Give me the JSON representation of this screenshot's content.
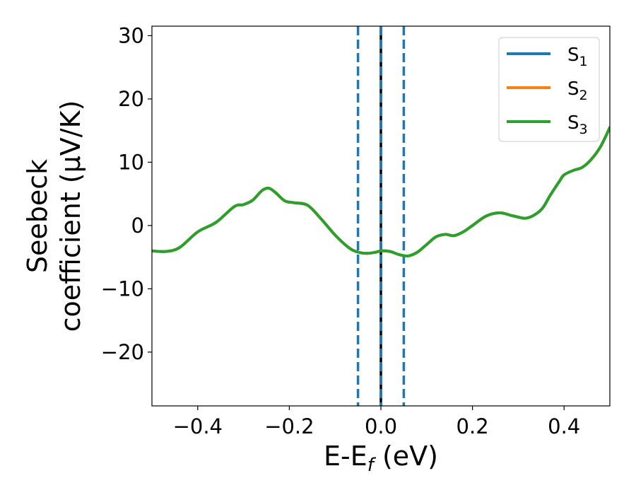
{
  "chart_data": {
    "type": "line",
    "xlabel": {
      "main": "E-E",
      "sub": "f",
      "tail": " (eV)"
    },
    "ylabel": {
      "line1": "Seebeck",
      "line2": "coefficient  (μV/K)"
    },
    "xlim": [
      -0.5,
      0.5
    ],
    "ylim": [
      -28.5,
      31.5
    ],
    "xticks": [
      -0.4,
      -0.2,
      0.0,
      0.2,
      0.4
    ],
    "xtick_labels": [
      "−0.4",
      "−0.2",
      "0.0",
      "0.2",
      "0.4"
    ],
    "yticks": [
      -20,
      -10,
      0,
      10,
      20,
      30
    ],
    "ytick_labels": [
      "−20",
      "−10",
      "0",
      "10",
      "20",
      "30"
    ],
    "grid": false,
    "legend_position": "top-right",
    "series": [
      {
        "name": "S",
        "sub": "1",
        "color": "#1f77b4",
        "x": [
          -0.5,
          -0.47,
          -0.44,
          -0.4,
          -0.36,
          -0.32,
          -0.3,
          -0.28,
          -0.26,
          -0.245,
          -0.23,
          -0.21,
          -0.19,
          -0.16,
          -0.13,
          -0.1,
          -0.07,
          -0.05,
          -0.03,
          -0.01,
          0.0,
          0.02,
          0.04,
          0.06,
          0.08,
          0.1,
          0.12,
          0.14,
          0.16,
          0.18,
          0.2,
          0.23,
          0.26,
          0.29,
          0.32,
          0.35,
          0.37,
          0.39,
          0.4,
          0.42,
          0.44,
          0.46,
          0.48,
          0.5
        ],
        "y": [
          -4.0,
          -4.1,
          -3.5,
          -1.0,
          0.5,
          3.0,
          3.3,
          4.0,
          5.5,
          5.9,
          5.2,
          3.9,
          3.6,
          3.2,
          1.0,
          -1.5,
          -3.5,
          -4.2,
          -4.4,
          -4.2,
          -4.0,
          -4.1,
          -4.6,
          -4.8,
          -4.2,
          -3.0,
          -1.8,
          -1.4,
          -1.6,
          -1.0,
          0.0,
          1.5,
          2.0,
          1.5,
          1.2,
          2.5,
          4.8,
          7.0,
          8.0,
          8.7,
          9.2,
          10.5,
          12.5,
          15.5
        ]
      },
      {
        "name": "S",
        "sub": "2",
        "color": "#ff7f0e",
        "x": [
          -0.5,
          -0.47,
          -0.44,
          -0.4,
          -0.36,
          -0.32,
          -0.3,
          -0.28,
          -0.26,
          -0.245,
          -0.23,
          -0.21,
          -0.19,
          -0.16,
          -0.13,
          -0.1,
          -0.07,
          -0.05,
          -0.03,
          -0.01,
          0.0,
          0.02,
          0.04,
          0.06,
          0.08,
          0.1,
          0.12,
          0.14,
          0.16,
          0.18,
          0.2,
          0.23,
          0.26,
          0.29,
          0.32,
          0.35,
          0.37,
          0.39,
          0.4,
          0.42,
          0.44,
          0.46,
          0.48,
          0.5
        ],
        "y": [
          -4.0,
          -4.1,
          -3.5,
          -1.0,
          0.5,
          3.0,
          3.3,
          4.0,
          5.5,
          5.9,
          5.2,
          3.9,
          3.6,
          3.2,
          1.0,
          -1.5,
          -3.5,
          -4.2,
          -4.4,
          -4.2,
          -4.0,
          -4.1,
          -4.6,
          -4.8,
          -4.2,
          -3.0,
          -1.8,
          -1.4,
          -1.6,
          -1.0,
          0.0,
          1.5,
          2.0,
          1.5,
          1.2,
          2.5,
          4.8,
          7.0,
          8.0,
          8.7,
          9.2,
          10.5,
          12.5,
          15.5
        ]
      },
      {
        "name": "S",
        "sub": "3",
        "color": "#2ca02c",
        "x": [
          -0.5,
          -0.47,
          -0.44,
          -0.4,
          -0.36,
          -0.32,
          -0.3,
          -0.28,
          -0.26,
          -0.245,
          -0.23,
          -0.21,
          -0.19,
          -0.16,
          -0.13,
          -0.1,
          -0.07,
          -0.05,
          -0.03,
          -0.01,
          0.0,
          0.02,
          0.04,
          0.06,
          0.08,
          0.1,
          0.12,
          0.14,
          0.16,
          0.18,
          0.2,
          0.23,
          0.26,
          0.29,
          0.32,
          0.35,
          0.37,
          0.39,
          0.4,
          0.42,
          0.44,
          0.46,
          0.48,
          0.5
        ],
        "y": [
          -4.0,
          -4.1,
          -3.5,
          -1.0,
          0.5,
          3.0,
          3.3,
          4.0,
          5.5,
          5.9,
          5.2,
          3.9,
          3.6,
          3.2,
          1.0,
          -1.5,
          -3.5,
          -4.2,
          -4.4,
          -4.2,
          -4.0,
          -4.1,
          -4.6,
          -4.8,
          -4.2,
          -3.0,
          -1.8,
          -1.4,
          -1.6,
          -1.0,
          0.0,
          1.5,
          2.0,
          1.5,
          1.2,
          2.5,
          4.8,
          7.0,
          8.0,
          8.7,
          9.2,
          10.5,
          12.5,
          15.5
        ]
      }
    ],
    "vertical_lines": [
      {
        "x": -0.05,
        "style": "dashed",
        "color": "#1f77b4"
      },
      {
        "x": 0.05,
        "style": "dashed",
        "color": "#1f77b4"
      },
      {
        "x": 0.0,
        "style": "solid",
        "color": "#000000"
      },
      {
        "x": 0.0,
        "style": "dashed",
        "color": "#1f77b4"
      }
    ]
  }
}
